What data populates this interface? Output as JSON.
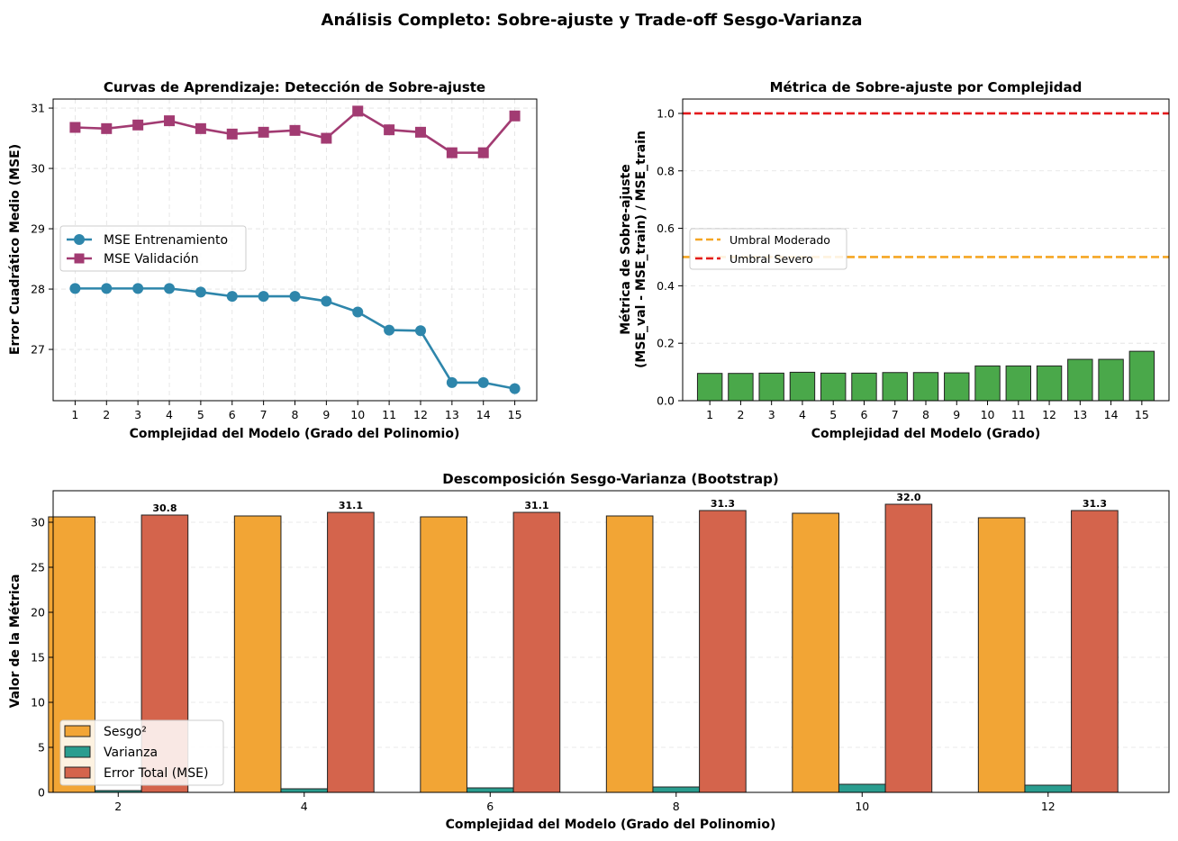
{
  "suptitle": "Análisis Completo: Sobre-ajuste y Trade-off Sesgo-Varianza",
  "colors": {
    "train": "#2e86ab",
    "val": "#a23b72",
    "overfit_bar": "#4aa84a",
    "moderate": "#f5a623",
    "severe": "#e31a1c",
    "bias": "#f2a535",
    "variance": "#2a9d8f",
    "total": "#d4644c"
  },
  "chart_data": [
    {
      "id": "learning-curves",
      "type": "line",
      "title": "Curvas de Aprendizaje: Detección de Sobre-ajuste",
      "xlabel": "Complejidad del Modelo (Grado del Polinomio)",
      "ylabel": "Error Cuadrático Medio (MSE)",
      "x": [
        1,
        2,
        3,
        4,
        5,
        6,
        7,
        8,
        9,
        10,
        11,
        12,
        13,
        14,
        15
      ],
      "xlim": [
        0.3,
        15.7
      ],
      "ylim": [
        26.15,
        31.15
      ],
      "yticks": [
        27,
        28,
        29,
        30,
        31
      ],
      "grid": true,
      "legend_position": "center-left",
      "series": [
        {
          "name": "MSE Entrenamiento",
          "marker": "circle",
          "values": [
            28.01,
            28.01,
            28.01,
            28.01,
            27.95,
            27.88,
            27.88,
            27.88,
            27.8,
            27.62,
            27.32,
            27.31,
            26.45,
            26.45,
            26.35
          ]
        },
        {
          "name": "MSE Validación",
          "marker": "square",
          "values": [
            30.68,
            30.66,
            30.72,
            30.79,
            30.66,
            30.57,
            30.6,
            30.63,
            30.5,
            30.95,
            30.64,
            30.6,
            30.26,
            30.26,
            30.87
          ]
        }
      ]
    },
    {
      "id": "overfit-metric",
      "type": "bar",
      "title": "Métrica de Sobre-ajuste por Complejidad",
      "xlabel": "Complejidad del Modelo (Grado)",
      "ylabel_line1": "Métrica de Sobre-ajuste",
      "ylabel_line2": "(MSE_val - MSE_train) / MSE_train",
      "categories": [
        "1",
        "2",
        "3",
        "4",
        "5",
        "6",
        "7",
        "8",
        "9",
        "10",
        "11",
        "12",
        "13",
        "14",
        "15"
      ],
      "values": [
        0.095,
        0.095,
        0.096,
        0.099,
        0.096,
        0.096,
        0.098,
        0.098,
        0.097,
        0.121,
        0.121,
        0.121,
        0.144,
        0.144,
        0.172
      ],
      "ylim": [
        0,
        1.05
      ],
      "yticks": [
        0.0,
        0.2,
        0.4,
        0.6,
        0.8,
        1.0
      ],
      "grid": true,
      "legend_position": "center-left",
      "thresholds": [
        {
          "name": "Umbral Moderado",
          "value": 0.5
        },
        {
          "name": "Umbral Severo",
          "value": 1.0
        }
      ]
    },
    {
      "id": "bias-variance",
      "type": "bar",
      "title": "Descomposición Sesgo-Varianza (Bootstrap)",
      "xlabel": "Complejidad del Modelo (Grado del Polinomio)",
      "ylabel": "Valor de la Métrica",
      "categories": [
        "2",
        "4",
        "6",
        "8",
        "10",
        "12"
      ],
      "x": [
        2,
        4,
        6,
        8,
        10,
        12
      ],
      "xlim": [
        1.3,
        13.3
      ],
      "ylim": [
        0,
        33.5
      ],
      "yticks": [
        0,
        5,
        10,
        15,
        20,
        25,
        30
      ],
      "grid": true,
      "legend_position": "lower-left",
      "series": [
        {
          "name": "Sesgo²",
          "values": [
            30.6,
            30.7,
            30.6,
            30.7,
            31.0,
            30.5
          ]
        },
        {
          "name": "Varianza",
          "values": [
            0.2,
            0.4,
            0.5,
            0.6,
            0.9,
            0.8
          ]
        },
        {
          "name": "Error Total (MSE)",
          "values": [
            30.8,
            31.1,
            31.1,
            31.3,
            32.0,
            31.3
          ]
        }
      ],
      "total_labels": [
        "30.8",
        "31.1",
        "31.1",
        "31.3",
        "32.0",
        "31.3"
      ]
    }
  ]
}
